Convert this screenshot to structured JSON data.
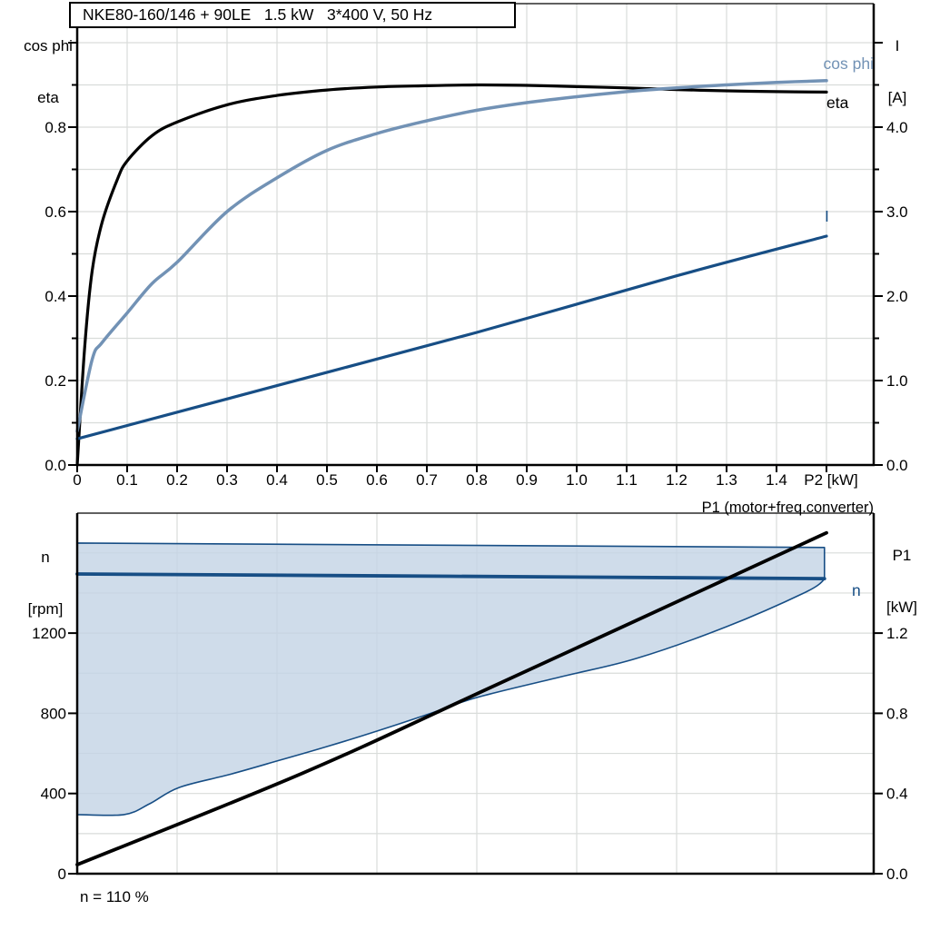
{
  "colors": {
    "black": "#000000",
    "steel_blue": "#7292b5",
    "dark_blue": "#174e85",
    "fill_blue": "#c3d3e5",
    "grid": "#d9dcda"
  },
  "top_chart": {
    "title": "NKE80-160/146 + 90LE   1.5 kW   3*400 V, 50 Hz",
    "left_axis_title_line1": "cos phi",
    "left_axis_title_line2": "eta",
    "right_axis_title_line1": "I",
    "right_axis_title_line2": "[A]",
    "x_axis_unit_label": "P2 [kW]",
    "curve_label_cos_phi": "cos phi",
    "curve_label_eta": "eta",
    "curve_label_current": "I"
  },
  "bottom_chart": {
    "left_axis_title_line1": "n",
    "left_axis_title_line2": "[rpm]",
    "right_axis_title_line1": "P1",
    "right_axis_title_line2": "[kW]",
    "p1_curve_label": "P1 (motor+freq.converter)",
    "n_curve_label": "n",
    "footnote": "n = 110 %"
  },
  "chart_data": [
    {
      "type": "line",
      "title": "NKE80-160/146 + 90LE   1.5 kW   3*400 V, 50 Hz",
      "xlabel": "P2 [kW]",
      "x_range": [
        0,
        1.595
      ],
      "x_tick_step": 0.1,
      "x_tick_labels": [
        "0",
        "0.1",
        "0.2",
        "0.3",
        "0.4",
        "0.5",
        "0.6",
        "0.7",
        "0.8",
        "0.9",
        "1.0",
        "1.1",
        "1.2",
        "1.3",
        "1.4"
      ],
      "y_left_label": "cos phi / eta",
      "y_left_range": [
        0,
        1.092
      ],
      "y_left_tick_labels": [
        "0.0",
        "0.2",
        "0.4",
        "0.6",
        "0.8"
      ],
      "y_left_tick_values": [
        0,
        0.2,
        0.4,
        0.6,
        0.8
      ],
      "y_right_label": "I [A]",
      "y_right_range": [
        0,
        5.46
      ],
      "y_right_tick_labels": [
        "0.0",
        "1.0",
        "2.0",
        "3.0",
        "4.0"
      ],
      "y_right_tick_values": [
        0,
        1,
        2,
        3,
        4
      ],
      "grid": "on",
      "series": [
        {
          "name": "eta",
          "color_key": "black",
          "width": 3.2,
          "y_axis": "left",
          "points": [
            [
              0,
              0
            ],
            [
              0.015,
              0.28
            ],
            [
              0.03,
              0.46
            ],
            [
              0.05,
              0.575
            ],
            [
              0.08,
              0.675
            ],
            [
              0.1,
              0.72
            ],
            [
              0.15,
              0.78
            ],
            [
              0.2,
              0.812
            ],
            [
              0.3,
              0.853
            ],
            [
              0.4,
              0.875
            ],
            [
              0.5,
              0.888
            ],
            [
              0.6,
              0.895
            ],
            [
              0.7,
              0.898
            ],
            [
              0.8,
              0.9
            ],
            [
              0.9,
              0.899
            ],
            [
              1.0,
              0.896
            ],
            [
              1.1,
              0.893
            ],
            [
              1.2,
              0.889
            ],
            [
              1.3,
              0.886
            ],
            [
              1.4,
              0.884
            ],
            [
              1.5,
              0.883
            ]
          ]
        },
        {
          "name": "cos phi",
          "color_key": "steel_blue",
          "width": 3.5,
          "y_axis": "left",
          "points": [
            [
              0,
              0.08
            ],
            [
              0.03,
              0.25
            ],
            [
              0.05,
              0.29
            ],
            [
              0.1,
              0.36
            ],
            [
              0.15,
              0.43
            ],
            [
              0.2,
              0.48
            ],
            [
              0.3,
              0.6
            ],
            [
              0.4,
              0.68
            ],
            [
              0.5,
              0.745
            ],
            [
              0.6,
              0.785
            ],
            [
              0.7,
              0.815
            ],
            [
              0.8,
              0.84
            ],
            [
              0.9,
              0.858
            ],
            [
              1.0,
              0.872
            ],
            [
              1.1,
              0.884
            ],
            [
              1.2,
              0.893
            ],
            [
              1.3,
              0.9
            ],
            [
              1.4,
              0.906
            ],
            [
              1.5,
              0.91
            ]
          ]
        },
        {
          "name": "I",
          "color_key": "dark_blue",
          "width": 3.2,
          "y_axis": "right_amps",
          "points": [
            [
              0,
              0.31
            ],
            [
              0.4,
              0.94
            ],
            [
              0.8,
              1.57
            ],
            [
              1.2,
              2.24
            ],
            [
              1.5,
              2.71
            ]
          ]
        }
      ]
    },
    {
      "type": "line+area",
      "xlabel": "",
      "x_range": [
        0,
        1.595
      ],
      "x_grid_step": 0.2,
      "y_left_label": "n [rpm]",
      "y_left_range": [
        0,
        1800
      ],
      "y_left_tick_labels": [
        "0",
        "400",
        "800",
        "1200"
      ],
      "y_left_tick_values": [
        0,
        400,
        800,
        1200
      ],
      "y_left_grid_step": 200,
      "y_right_label": "P1 [kW]",
      "y_right_range": [
        0,
        1.8
      ],
      "y_right_tick_labels": [
        "0.0",
        "0.4",
        "0.8",
        "1.2"
      ],
      "y_right_tick_values": [
        0,
        0.4,
        0.8,
        1.2
      ],
      "envelope": {
        "name": "speed operating envelope",
        "upper": [
          [
            0,
            1649
          ],
          [
            1.496,
            1627
          ]
        ],
        "lower": [
          [
            0,
            295
          ],
          [
            0.094,
            295
          ],
          [
            0.145,
            349
          ],
          [
            0.204,
            430
          ],
          [
            0.304,
            494
          ],
          [
            0.4,
            562
          ],
          [
            0.5,
            634
          ],
          [
            0.6,
            711
          ],
          [
            0.7,
            793
          ],
          [
            0.8,
            879
          ],
          [
            0.97,
            983
          ],
          [
            1.12,
            1074
          ],
          [
            1.3,
            1232
          ],
          [
            1.458,
            1404
          ],
          [
            1.496,
            1468
          ]
        ]
      },
      "series": [
        {
          "name": "n",
          "color_key": "dark_blue",
          "width": 3.8,
          "y_axis": "left",
          "points": [
            [
              0,
              1495
            ],
            [
              1.496,
              1472
            ]
          ]
        },
        {
          "name": "P1 (motor+freq.converter)",
          "color_key": "black",
          "width": 3.8,
          "y_axis": "right",
          "points": [
            [
              0,
              0.045
            ],
            [
              0.45,
              0.5
            ],
            [
              0.82,
              0.92
            ],
            [
              1.5,
              1.7
            ]
          ]
        }
      ]
    }
  ]
}
